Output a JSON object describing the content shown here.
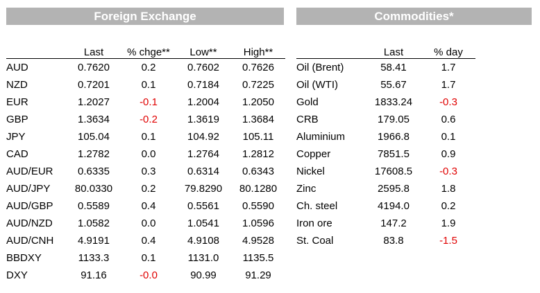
{
  "fx": {
    "title": "Foreign Exchange",
    "headers": [
      "",
      "Last",
      "% chge**",
      "Low**",
      "High**"
    ],
    "rows": [
      {
        "label": "AUD",
        "last": "0.7620",
        "chg": "0.2",
        "low": "0.7602",
        "high": "0.7626",
        "neg": false
      },
      {
        "label": "NZD",
        "last": "0.7201",
        "chg": "0.1",
        "low": "0.7184",
        "high": "0.7225",
        "neg": false
      },
      {
        "label": "EUR",
        "last": "1.2027",
        "chg": "-0.1",
        "low": "1.2004",
        "high": "1.2050",
        "neg": true
      },
      {
        "label": "GBP",
        "last": "1.3634",
        "chg": "-0.2",
        "low": "1.3619",
        "high": "1.3684",
        "neg": true
      },
      {
        "label": "JPY",
        "last": "105.04",
        "chg": "0.1",
        "low": "104.92",
        "high": "105.11",
        "neg": false
      },
      {
        "label": "CAD",
        "last": "1.2782",
        "chg": "0.0",
        "low": "1.2764",
        "high": "1.2812",
        "neg": false
      },
      {
        "label": "AUD/EUR",
        "last": "0.6335",
        "chg": "0.3",
        "low": "0.6314",
        "high": "0.6343",
        "neg": false
      },
      {
        "label": "AUD/JPY",
        "last": "80.0330",
        "chg": "0.2",
        "low": "79.8290",
        "high": "80.1280",
        "neg": false
      },
      {
        "label": "AUD/GBP",
        "last": "0.5589",
        "chg": "0.4",
        "low": "0.5561",
        "high": "0.5590",
        "neg": false
      },
      {
        "label": "AUD/NZD",
        "last": "1.0582",
        "chg": "0.0",
        "low": "1.0541",
        "high": "1.0596",
        "neg": false
      },
      {
        "label": "AUD/CNH",
        "last": "4.9191",
        "chg": "0.4",
        "low": "4.9108",
        "high": "4.9528",
        "neg": false
      },
      {
        "label": "BBDXY",
        "last": "1133.3",
        "chg": "0.1",
        "low": "1131.0",
        "high": "1135.5",
        "neg": false
      },
      {
        "label": "DXY",
        "last": "91.16",
        "chg": "-0.0",
        "low": "90.99",
        "high": "91.29",
        "neg": true
      }
    ]
  },
  "commodities": {
    "title": "Commodities*",
    "headers": [
      "",
      "Last",
      "% day"
    ],
    "rows": [
      {
        "label": "Oil (Brent)",
        "last": "58.41",
        "chg": "1.7",
        "neg": false
      },
      {
        "label": "Oil (WTI)",
        "last": "55.67",
        "chg": "1.7",
        "neg": false
      },
      {
        "label": "Gold",
        "last": "1833.24",
        "chg": "-0.3",
        "neg": true
      },
      {
        "label": "CRB",
        "last": "179.05",
        "chg": "0.6",
        "neg": false
      },
      {
        "label": "Aluminium",
        "last": "1966.8",
        "chg": "0.1",
        "neg": false
      },
      {
        "label": "Copper",
        "last": "7851.5",
        "chg": "0.9",
        "neg": false
      },
      {
        "label": "Nickel",
        "last": "17608.5",
        "chg": "-0.3",
        "neg": true
      },
      {
        "label": "Zinc",
        "last": "2595.8",
        "chg": "1.8",
        "neg": false
      },
      {
        "label": "Ch. steel",
        "last": "4194.0",
        "chg": "0.2",
        "neg": false
      },
      {
        "label": "Iron ore",
        "last": "147.2",
        "chg": "1.9",
        "neg": false
      },
      {
        "label": "St. Coal",
        "last": "83.8",
        "chg": "-1.5",
        "neg": true
      }
    ]
  },
  "colors": {
    "header_bg": "#b3b3b3",
    "negative": "#e00000"
  }
}
